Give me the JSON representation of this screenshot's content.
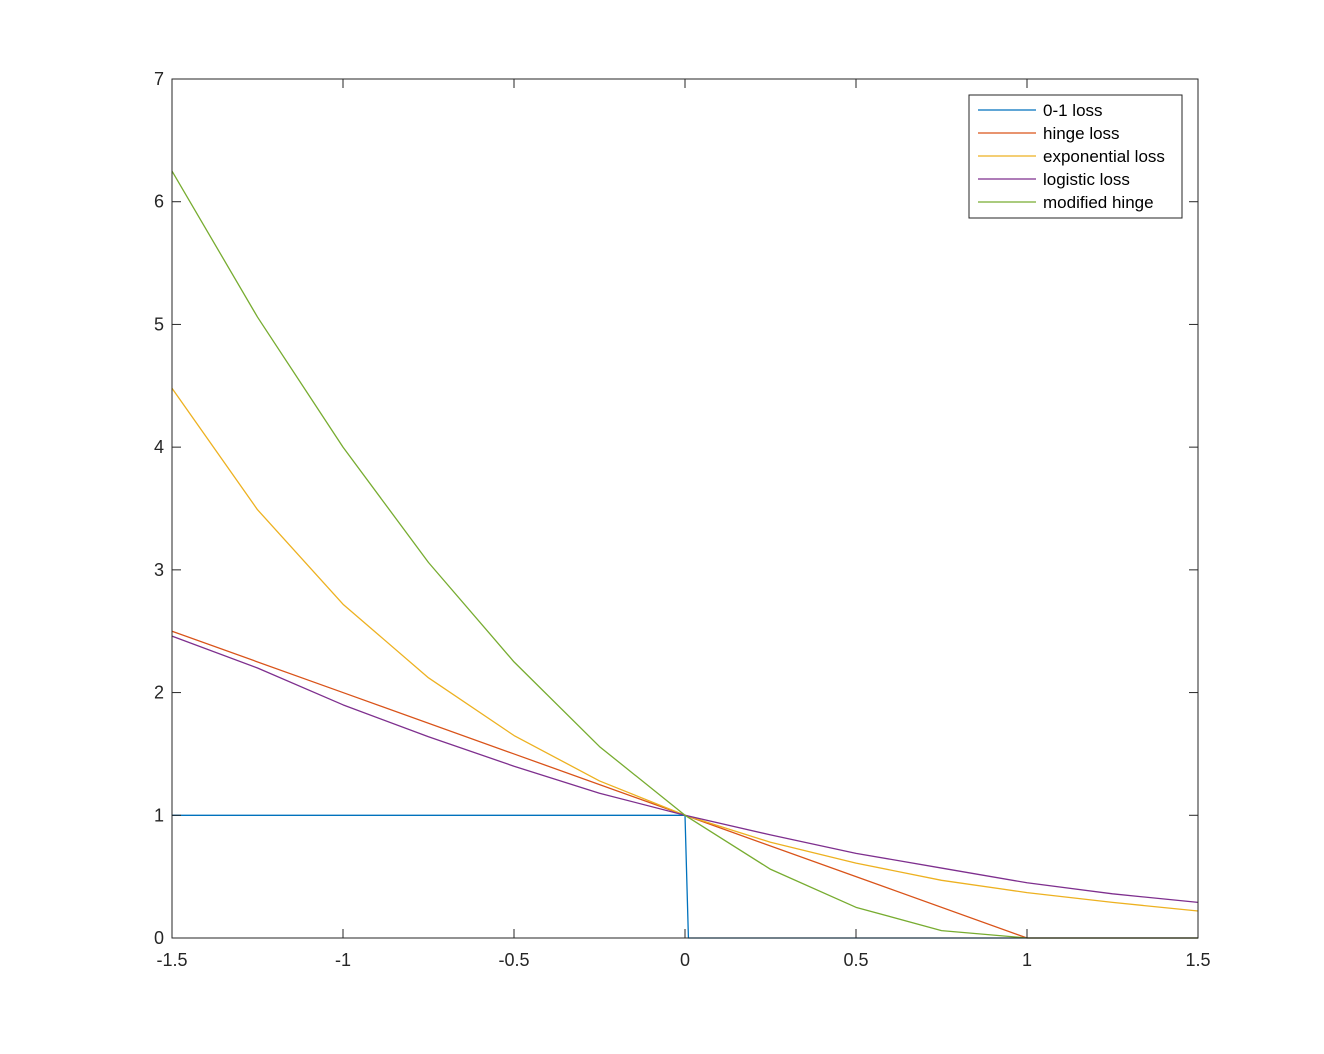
{
  "chart_data": {
    "type": "line",
    "title": "",
    "xlabel": "",
    "ylabel": "",
    "xlim": [
      -1.5,
      1.5
    ],
    "ylim": [
      0,
      7
    ],
    "xticks": [
      -1.5,
      -1,
      -0.5,
      0,
      0.5,
      1,
      1.5
    ],
    "xtick_labels": [
      "-1.5",
      "-1",
      "-0.5",
      "0",
      "0.5",
      "1",
      "1.5"
    ],
    "yticks": [
      0,
      1,
      2,
      3,
      4,
      5,
      6,
      7
    ],
    "ytick_labels": [
      "0",
      "1",
      "2",
      "3",
      "4",
      "5",
      "6",
      "7"
    ],
    "grid": false,
    "legend_position": "top-right",
    "series": [
      {
        "name": "0-1 loss",
        "color": "#0072BD",
        "x": [
          -1.5,
          -0.01,
          0,
          0.01,
          1.5
        ],
        "y": [
          1,
          1,
          1,
          0,
          0
        ]
      },
      {
        "name": "hinge loss",
        "color": "#D95319",
        "x": [
          -1.5,
          -1,
          -0.5,
          0,
          0.5,
          1,
          1.5
        ],
        "y": [
          2.5,
          2,
          1.5,
          1,
          0.5,
          0,
          0
        ]
      },
      {
        "name": "exponential loss",
        "color": "#EDB120",
        "x": [
          -1.5,
          -1.25,
          -1,
          -0.75,
          -0.5,
          -0.25,
          0,
          0.25,
          0.5,
          0.75,
          1,
          1.25,
          1.5
        ],
        "y": [
          4.48,
          3.49,
          2.72,
          2.12,
          1.65,
          1.28,
          1,
          0.78,
          0.61,
          0.47,
          0.37,
          0.29,
          0.22
        ]
      },
      {
        "name": "logistic loss",
        "color": "#7E2F8E",
        "x": [
          -1.5,
          -1.25,
          -1,
          -0.75,
          -0.5,
          -0.25,
          0,
          0.25,
          0.5,
          0.75,
          1,
          1.25,
          1.5
        ],
        "y": [
          2.46,
          2.2,
          1.9,
          1.64,
          1.4,
          1.18,
          1,
          0.84,
          0.69,
          0.57,
          0.45,
          0.36,
          0.29
        ]
      },
      {
        "name": "modified hinge",
        "color": "#77AC30",
        "x": [
          -1.5,
          -1.25,
          -1,
          -0.75,
          -0.5,
          -0.25,
          0,
          0.25,
          0.5,
          0.75,
          1,
          1.25,
          1.5
        ],
        "y": [
          6.25,
          5.06,
          4,
          3.06,
          2.25,
          1.56,
          1,
          0.56,
          0.25,
          0.06,
          0,
          0,
          0
        ]
      }
    ]
  }
}
